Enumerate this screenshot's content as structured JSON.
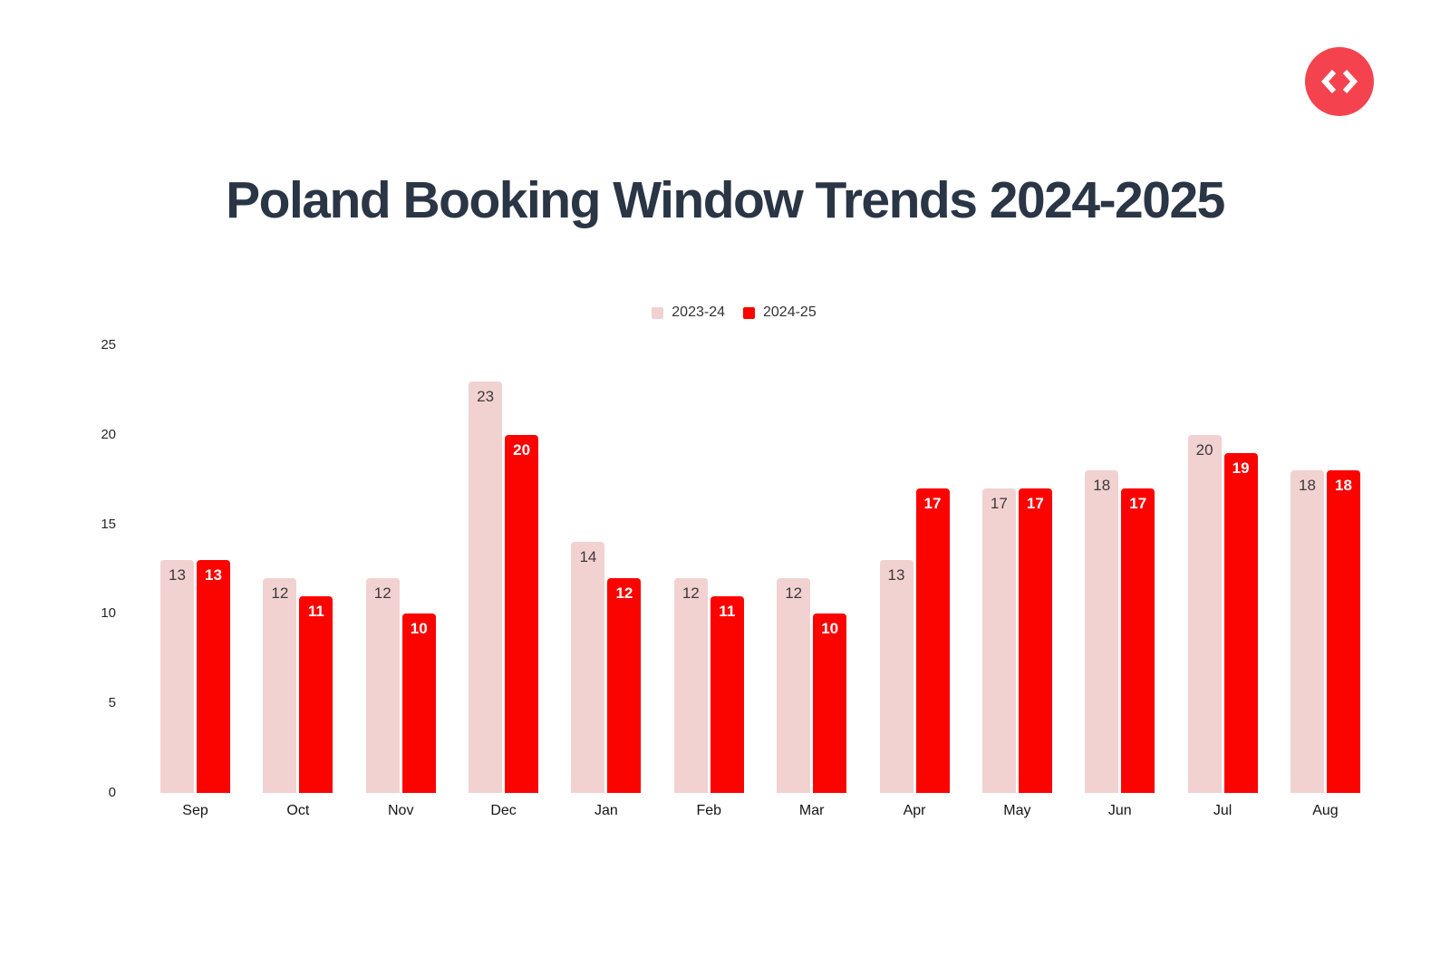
{
  "logo": {
    "bg_color": "#f4434e",
    "glyph_color": "#ffffff",
    "icon": "code-brackets-icon"
  },
  "header": {
    "title_color": "#2a3545"
  },
  "chart_data": {
    "type": "bar",
    "title": "Poland Booking Window Trends 2024-2025",
    "categories": [
      "Sep",
      "Oct",
      "Nov",
      "Dec",
      "Jan",
      "Feb",
      "Mar",
      "Apr",
      "May",
      "Jun",
      "Jul",
      "Aug"
    ],
    "series": [
      {
        "name": "2023-24",
        "color": "#f2d1d1",
        "label_color": "#3a3a3a",
        "values": [
          13,
          12,
          12,
          23,
          14,
          12,
          12,
          13,
          17,
          18,
          20,
          18
        ]
      },
      {
        "name": "2024-25",
        "color": "#fb0400",
        "label_color": "#ffffff",
        "values": [
          13,
          11,
          10,
          20,
          12,
          11,
          10,
          17,
          17,
          17,
          19,
          18
        ]
      }
    ],
    "xlabel": "",
    "ylabel": "",
    "ylim": [
      0,
      25
    ],
    "yticks": [
      0,
      5,
      10,
      15,
      20,
      25
    ],
    "grid": false,
    "legend_position": "top-center",
    "value_labels": "inside-top",
    "tick_color": "#262626",
    "background": "#ffffff"
  }
}
